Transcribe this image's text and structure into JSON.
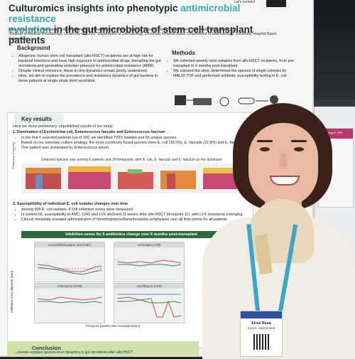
{
  "poster": {
    "title_line1_a": "Culturomics insights into phenotypic ",
    "title_line1_b": "antimicrobial resistance",
    "title_line2_a": "evolution",
    "title_line2_b": " in the gut microbiota of stem cell transplant patients",
    "contact": "Let's connect",
    "authors": "Elisa Sosa¹, Ana G. Monsalve¹, Klara Haldimann¹, Diana Albertos Torres², Julia G. Schulze², Simon M. Mueller³, Jörg Halter³ and Adrian Egli¹",
    "affiliations": "¹Institute of Medical Microbiology, University of Zurich  ²Department of Dermatology, University Hospital Basel  ³Department of Haematology, University Hospital Basel, Switzerland",
    "background_head": "Background",
    "background_bullets": [
      "Allogeneic human stem cell transplant (allo-HSCT) recipients are at high risk for bacterial infections and have high exposure to antimicrobial drugs, disrupting the gut microbiota and generating selection pressure for antimicrobial resistance (AMR).",
      "Despite clinical relevance, these in vivo dynamics remain poorly understood.",
      "Here, we aim to explore the prevalence and resistance dynamics of gut bacteria in these patients at single-strain level resolution."
    ],
    "methods_head": "Methods",
    "methods_bullets": [
      "We collected weekly stool samples from allo-HSCT recipients, from pre-transplant to 6 months post-transplant.",
      "We cultured the stool, determined the species of single colonies by MALDI-TOF and performed antibiotic susceptibility testing in E. coli"
    ],
    "key_results_head": "Key results",
    "key_intro": "Here we show preliminary, unpublished results of our study:",
    "result1_head": "1. Domination of Escherichia coli, Enterococcus faecalis and Enterococcus faecium",
    "result1_bullets": [
      "In the first 6 selected patients out of 100, we identified 7'815 isolates and 65 unique species.",
      "Based on our selective culture strategy, the most commonly found species were E. coli (36.5%), E. faecalis (22.8%) and E. faecium",
      "One patient was dominated by Enterococcus avium."
    ],
    "chart1_title": "Detected species vary among 6 patients and 39 timepoints, with E. coli, E. faecalis and E. faecium as the dominant",
    "result2_head": "2. Susceptibility of individual E. coli isolates changes over time",
    "result2_bullets": [
      "Among 695 E. coli isolates, 4'168 inhibition zones were measured.",
      "In patient 06, susceptibility to AMC, CRO and LVX declined 11 weeks after allo-HSCT (timepoint 11), with LVX resistance emerging",
      "Clinical metadata revealed administration of trimethoprim/sulfamethoxazole prophylaxis over all time points for all patients"
    ],
    "inhibition_title": "Inhibition zones for 6 antibiotics change over 6 months post-transplant",
    "minichart_titles": [
      "Amoxicillin/clavulanic acid (AMC)",
      "Aztreonam (ATM)",
      "Cefuroxime (CXM)",
      "Levofloxacin (LVX)"
    ],
    "y_axis_label": "Inhibition zone diameter [mm]",
    "x_axis_label": "Timepoint [weeks after transplantation]",
    "conclusion_head": "Conclusion",
    "conclusion_text": "...reveals complex species-level dynamics in gut microbiota after allo-HSCT"
  },
  "badge": {
    "name": "Elisa Sosa",
    "affiliation": "Zurich, Switzerland"
  },
  "side_poster_label": "Screening in VRE",
  "colors": {
    "accent_teal": "#3aa7a0",
    "conclusion_green": "#cfe3a8",
    "table_header_green": "#2f6a3c",
    "hair": "#3a2218",
    "lanyard": "#3aa7c8"
  }
}
